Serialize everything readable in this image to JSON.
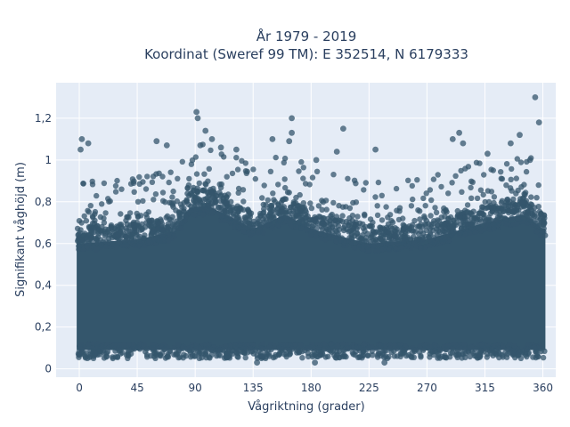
{
  "chart_data": {
    "type": "scatter",
    "title_line1": "År 1979 - 2019",
    "title_line2": "Koordinat (Sweref 99 TM): E 352514, N 6179333",
    "xlabel": "Vågriktning (grader)",
    "ylabel": "Signifikant våghöjd (m)",
    "xlim": [
      -18,
      370
    ],
    "ylim": [
      -0.04,
      1.37
    ],
    "xticks": [
      0,
      45,
      90,
      135,
      180,
      225,
      270,
      315,
      360
    ],
    "xtick_labels": [
      "0",
      "45",
      "90",
      "135",
      "180",
      "225",
      "270",
      "315",
      "360"
    ],
    "yticks": [
      0,
      0.2,
      0.4,
      0.6,
      0.8,
      1.0,
      1.2
    ],
    "ytick_labels": [
      "0",
      "0,2",
      "0,4",
      "0,6",
      "0,8",
      "1",
      "1,2"
    ],
    "grid": true,
    "plot_bg": "#e5ecf6",
    "marker_color": "#34566c",
    "marker_opacity": 0.75,
    "dense_region": {
      "x_range": [
        -2,
        362
      ],
      "y_base_range": [
        0.05,
        0.1
      ],
      "upper_envelope": [
        {
          "x": 0,
          "y": 0.68
        },
        {
          "x": 45,
          "y": 0.7
        },
        {
          "x": 75,
          "y": 0.74
        },
        {
          "x": 85,
          "y": 0.85
        },
        {
          "x": 100,
          "y": 0.86
        },
        {
          "x": 120,
          "y": 0.8
        },
        {
          "x": 135,
          "y": 0.75
        },
        {
          "x": 160,
          "y": 0.82
        },
        {
          "x": 180,
          "y": 0.75
        },
        {
          "x": 225,
          "y": 0.68
        },
        {
          "x": 270,
          "y": 0.7
        },
        {
          "x": 315,
          "y": 0.78
        },
        {
          "x": 345,
          "y": 0.82
        },
        {
          "x": 360,
          "y": 0.75
        }
      ]
    },
    "highlighted_points": [
      {
        "x": 354,
        "y": 1.3
      },
      {
        "x": 357,
        "y": 1.18
      },
      {
        "x": 91,
        "y": 1.23
      },
      {
        "x": 92,
        "y": 1.2
      },
      {
        "x": 165,
        "y": 1.2
      },
      {
        "x": 205,
        "y": 1.15
      },
      {
        "x": 2,
        "y": 1.1
      },
      {
        "x": 7,
        "y": 1.08
      },
      {
        "x": 1,
        "y": 1.05
      },
      {
        "x": 60,
        "y": 1.09
      },
      {
        "x": 68,
        "y": 1.07
      },
      {
        "x": 94,
        "y": 1.07
      },
      {
        "x": 98,
        "y": 1.14
      },
      {
        "x": 103,
        "y": 1.1
      },
      {
        "x": 110,
        "y": 1.06
      },
      {
        "x": 122,
        "y": 1.05
      },
      {
        "x": 150,
        "y": 1.1
      },
      {
        "x": 163,
        "y": 1.09
      },
      {
        "x": 165,
        "y": 1.13
      },
      {
        "x": 184,
        "y": 1.0
      },
      {
        "x": 200,
        "y": 1.04
      },
      {
        "x": 230,
        "y": 1.05
      },
      {
        "x": 290,
        "y": 1.1
      },
      {
        "x": 295,
        "y": 1.13
      },
      {
        "x": 298,
        "y": 1.08
      },
      {
        "x": 317,
        "y": 1.03
      },
      {
        "x": 335,
        "y": 1.08
      },
      {
        "x": 342,
        "y": 1.12
      },
      {
        "x": 350,
        "y": 1.0
      },
      {
        "x": 138,
        "y": 0.03
      },
      {
        "x": 237,
        "y": 0.03
      },
      {
        "x": 183,
        "y": 0.03
      }
    ]
  }
}
